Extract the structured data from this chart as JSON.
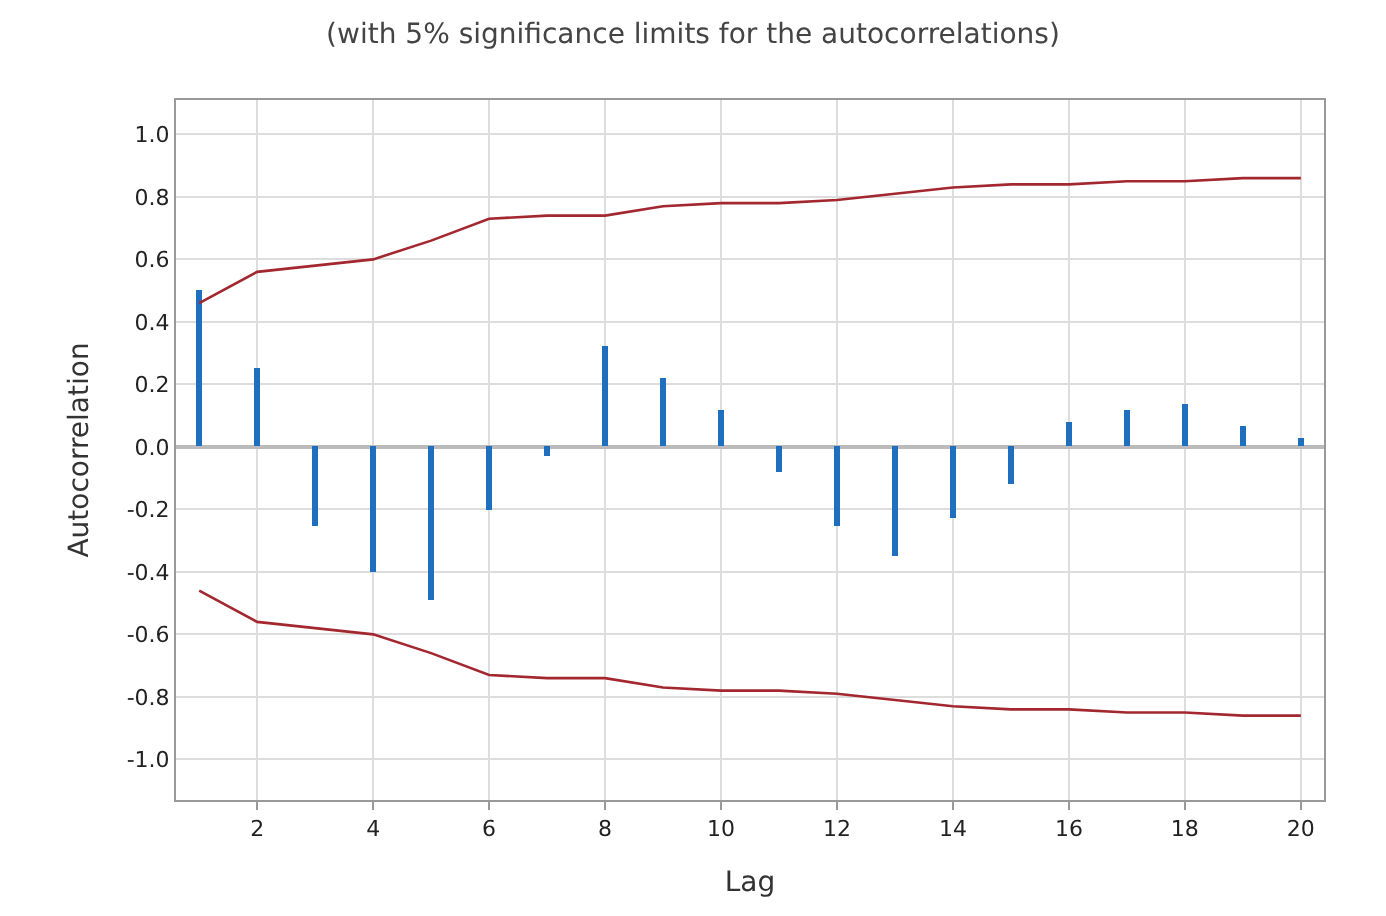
{
  "chart_data": {
    "type": "bar",
    "title": "(with 5% significance limits for the autocorrelations)",
    "xlabel": "Lag",
    "ylabel": "Autocorrelation",
    "x": [
      1,
      2,
      3,
      4,
      5,
      6,
      7,
      8,
      9,
      10,
      11,
      12,
      13,
      14,
      15,
      16,
      17,
      18,
      19,
      20
    ],
    "series": [
      {
        "color": "#1f6fbf",
        "values": [
          0.5,
          0.25,
          -0.25,
          -0.4,
          -0.49,
          -0.2,
          -0.03,
          0.32,
          0.22,
          0.12,
          -0.08,
          -0.25,
          -0.35,
          -0.23,
          -0.12,
          0.08,
          0.12,
          0.14,
          0.07,
          0.03
        ]
      },
      {
        "type": "line",
        "color": "#a3272f",
        "values": [
          0.46,
          0.56,
          0.58,
          0.6,
          0.66,
          0.73,
          0.74,
          0.74,
          0.77,
          0.78,
          0.78,
          0.79,
          0.81,
          0.83,
          0.84,
          0.84,
          0.85,
          0.85,
          0.86,
          0.86
        ]
      },
      {
        "type": "line",
        "color": "#a3272f",
        "values": [
          -0.46,
          -0.56,
          -0.58,
          -0.6,
          -0.66,
          -0.73,
          -0.74,
          -0.74,
          -0.77,
          -0.78,
          -0.78,
          -0.79,
          -0.81,
          -0.83,
          -0.84,
          -0.84,
          -0.85,
          -0.85,
          -0.86,
          -0.86
        ]
      }
    ],
    "xlim": [
      0.6,
      20.4
    ],
    "xticks": [
      2,
      4,
      6,
      8,
      10,
      12,
      14,
      16,
      18,
      20
    ],
    "ylim": [
      -1.13,
      1.11
    ],
    "yticks": [
      {
        "value": 1.0,
        "label": "1.0"
      },
      {
        "value": 0.8,
        "label": "0.8"
      },
      {
        "value": 0.6,
        "label": "0.6"
      },
      {
        "value": 0.4,
        "label": "0.4"
      },
      {
        "value": 0.2,
        "label": "0.2"
      },
      {
        "value": 0.0,
        "label": "0.0"
      },
      {
        "value": -0.2,
        "label": "-0.2"
      },
      {
        "value": -0.4,
        "label": "-0.4"
      },
      {
        "value": -0.6,
        "label": "-0.6"
      },
      {
        "value": -0.8,
        "label": "-0.8"
      },
      {
        "value": -1.0,
        "label": "-1.0"
      }
    ],
    "grid": true
  }
}
